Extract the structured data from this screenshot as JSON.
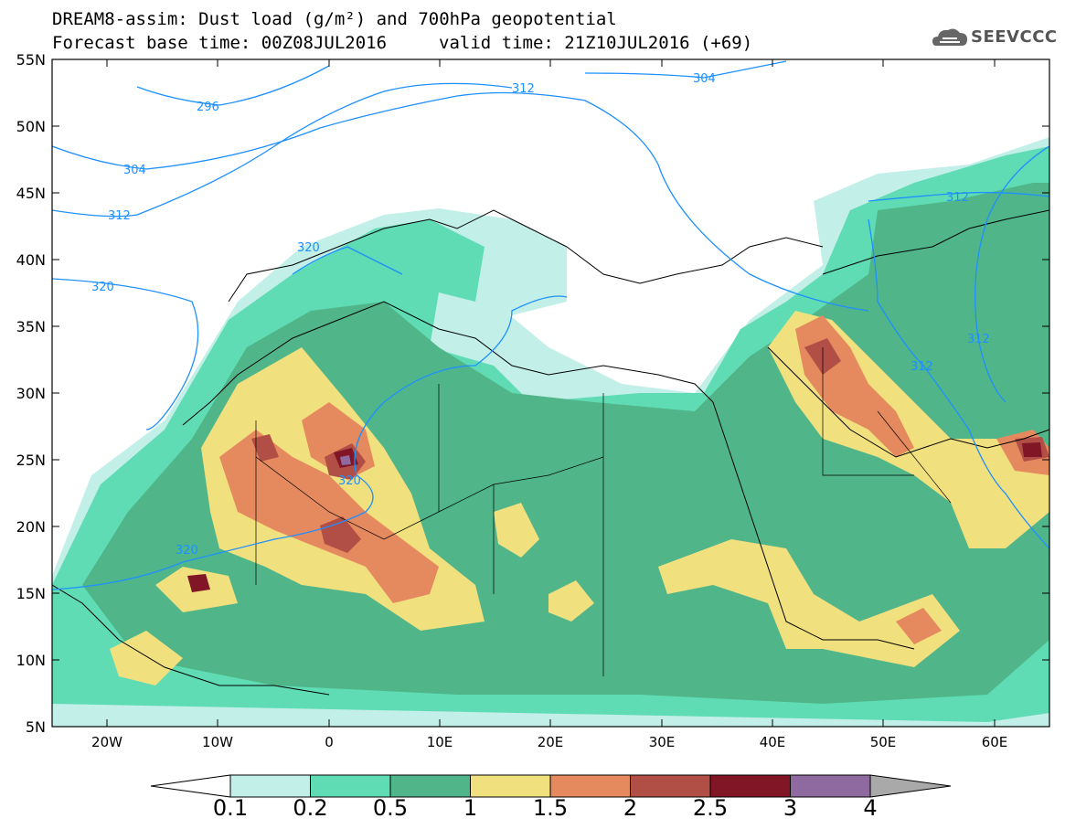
{
  "header": {
    "title_line1": "DREAM8-assim: Dust load (g/m²) and 700hPa geopotential",
    "base_time": "Forecast base time: 00Z08JUL2016",
    "valid_time": "valid time: 21Z10JUL2016 (+69)"
  },
  "logo": {
    "text": "SEEVCCC",
    "icon": "cloud-icon"
  },
  "axes": {
    "lat_labels": [
      "55N",
      "50N",
      "45N",
      "40N",
      "35N",
      "30N",
      "25N",
      "20N",
      "15N",
      "10N",
      "5N"
    ],
    "lon_labels": [
      "20W",
      "10W",
      "0",
      "10E",
      "20E",
      "30E",
      "40E",
      "50E",
      "60E"
    ]
  },
  "contours": {
    "labels": [
      "296",
      "304",
      "312",
      "320",
      "320",
      "320",
      "320",
      "304",
      "312",
      "312",
      "312",
      "312"
    ]
  },
  "colorbar": {
    "labels": [
      "0.1",
      "0.2",
      "0.5",
      "1",
      "1.5",
      "2",
      "2.5",
      "3",
      "4"
    ],
    "colors": [
      "#ffffff",
      "#c2efe8",
      "#5fdcb3",
      "#51b58a",
      "#f1e07e",
      "#e5895f",
      "#b14e45",
      "#801626",
      "#8e6aa0",
      "#a9a9a9"
    ]
  }
}
